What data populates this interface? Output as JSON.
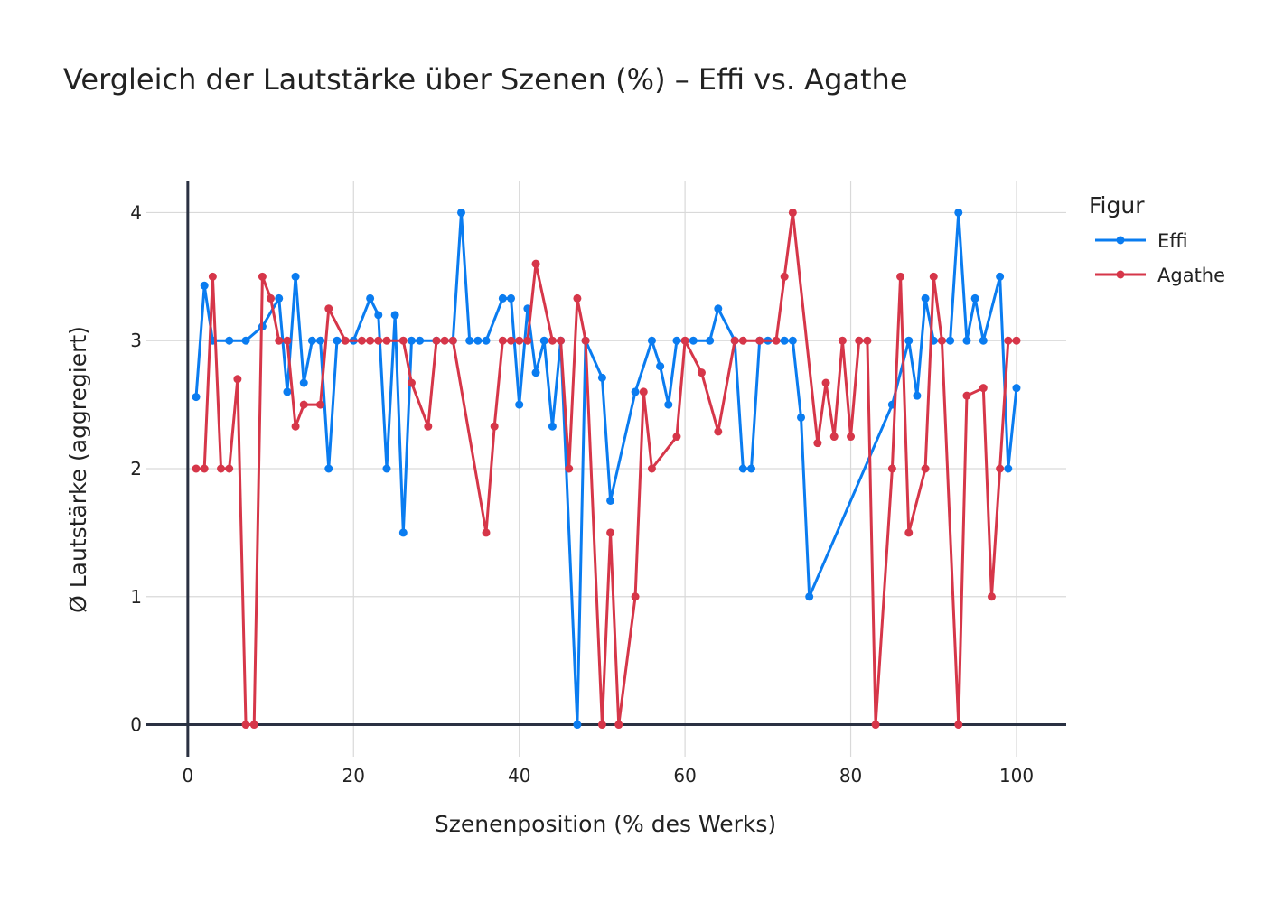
{
  "chart_data": {
    "type": "line",
    "title": "Vergleich der Lautstärke über Szenen (%) – Effi vs. Agathe",
    "xlabel": "Szenenposition (% des Werks)",
    "ylabel": "Ø Lautstärke (aggregiert)",
    "xlim": [
      -5,
      106
    ],
    "ylim": [
      -0.25,
      4.25
    ],
    "x_ticks": [
      0,
      20,
      40,
      60,
      80,
      100
    ],
    "y_ticks": [
      0,
      1,
      2,
      3,
      4
    ],
    "grid": true,
    "legend": {
      "title": "Figur",
      "placement": "top-right"
    },
    "series": [
      {
        "name": "Effi",
        "color": "#0a7cf0",
        "x": [
          1,
          2,
          3,
          5,
          7,
          9,
          11,
          12,
          13,
          14,
          15,
          16,
          17,
          18,
          20,
          22,
          23,
          24,
          25,
          26,
          27,
          28,
          30,
          32,
          33,
          34,
          35,
          36,
          38,
          39,
          40,
          41,
          42,
          43,
          44,
          45,
          47,
          48,
          50,
          51,
          54,
          56,
          57,
          58,
          59,
          61,
          63,
          64,
          66,
          67,
          68,
          69,
          70,
          72,
          73,
          74,
          75,
          85,
          87,
          88,
          89,
          90,
          92,
          93,
          94,
          95,
          96,
          98,
          99,
          100
        ],
        "values": [
          2.56,
          3.43,
          3.0,
          3.0,
          3.0,
          3.11,
          3.33,
          2.6,
          3.5,
          2.67,
          3.0,
          3.0,
          2.0,
          3.0,
          3.0,
          3.33,
          3.2,
          2.0,
          3.2,
          1.5,
          3.0,
          3.0,
          3.0,
          3.0,
          4.0,
          3.0,
          3.0,
          3.0,
          3.33,
          3.33,
          2.5,
          3.25,
          2.75,
          3.0,
          2.33,
          3.0,
          0.0,
          3.0,
          2.71,
          1.75,
          2.6,
          3.0,
          2.8,
          2.5,
          3.0,
          3.0,
          3.0,
          3.25,
          3.0,
          2.0,
          2.0,
          3.0,
          3.0,
          3.0,
          3.0,
          2.4,
          1.0,
          2.5,
          3.0,
          2.57,
          3.33,
          3.0,
          3.0,
          4.0,
          3.0,
          3.33,
          3.0,
          3.5,
          2.0,
          2.63
        ]
      },
      {
        "name": "Agathe",
        "color": "#d63649",
        "x": [
          1,
          2,
          3,
          4,
          5,
          6,
          7,
          8,
          9,
          10,
          11,
          12,
          13,
          14,
          16,
          17,
          19,
          21,
          22,
          23,
          24,
          26,
          27,
          29,
          30,
          31,
          32,
          36,
          37,
          38,
          39,
          40,
          41,
          42,
          44,
          45,
          46,
          47,
          48,
          50,
          51,
          52,
          54,
          55,
          56,
          59,
          60,
          62,
          64,
          66,
          67,
          69,
          71,
          72,
          73,
          76,
          77,
          78,
          79,
          80,
          81,
          82,
          83,
          85,
          86,
          87,
          89,
          90,
          91,
          93,
          94,
          96,
          97,
          98,
          99,
          100
        ],
        "values": [
          2.0,
          2.0,
          3.5,
          2.0,
          2.0,
          2.7,
          0.0,
          0.0,
          3.5,
          3.33,
          3.0,
          3.0,
          2.33,
          2.5,
          2.5,
          3.25,
          3.0,
          3.0,
          3.0,
          3.0,
          3.0,
          3.0,
          2.67,
          2.33,
          3.0,
          3.0,
          3.0,
          1.5,
          2.33,
          3.0,
          3.0,
          3.0,
          3.0,
          3.6,
          3.0,
          3.0,
          2.0,
          3.33,
          3.0,
          0.0,
          1.5,
          0.0,
          1.0,
          2.6,
          2.0,
          2.25,
          3.0,
          2.75,
          2.29,
          3.0,
          3.0,
          3.0,
          3.0,
          3.5,
          4.0,
          2.2,
          2.67,
          2.25,
          3.0,
          2.25,
          3.0,
          3.0,
          0.0,
          2.0,
          3.5,
          1.5,
          2.0,
          3.5,
          3.0,
          0.0,
          2.57,
          2.63,
          1.0,
          2.0,
          3.0,
          3.0
        ]
      }
    ]
  }
}
